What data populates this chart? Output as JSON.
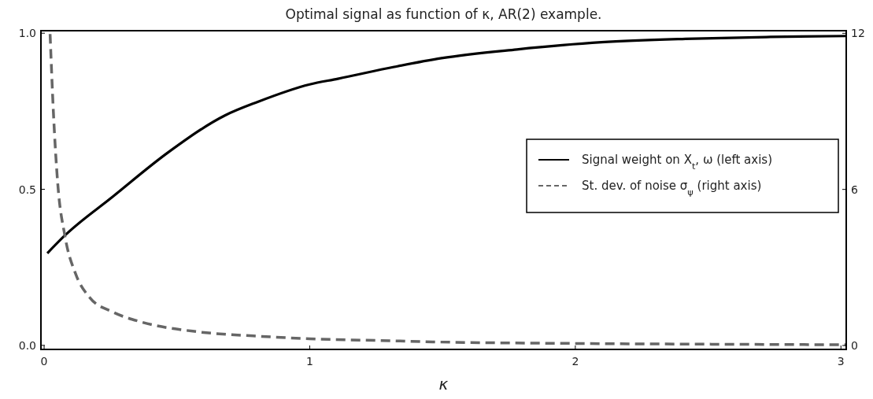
{
  "chart_data": {
    "type": "line",
    "title": "Optimal signal as function of κ, AR(2) example.",
    "xlabel": "κ",
    "xlim": [
      -0.012,
      3.02
    ],
    "xticks": [
      0,
      1,
      2,
      3
    ],
    "ylim": [
      -0.013,
      1.008
    ],
    "yticks": [
      {
        "value": 0,
        "label": "0.0"
      },
      {
        "value": 0.5,
        "label": "0.5"
      },
      {
        "value": 1,
        "label": "1.0"
      }
    ],
    "y2lim": [
      -0.15,
      12.1
    ],
    "y2ticks": [
      0,
      6,
      12
    ],
    "grid": false,
    "legend": "right",
    "marker": "none",
    "series": [
      {
        "name": "Signal weight on X$_{t}$, ω (left axis)",
        "color": "#000000",
        "line_style": "solid",
        "x": [
          0.012,
          0.078,
          0.258,
          0.47,
          0.682,
          0.804,
          1.0,
          1.106,
          1.318,
          1.496,
          1.78,
          2.098,
          2.415,
          2.735,
          3.02
        ],
        "values": [
          0.295,
          0.352,
          0.476,
          0.62,
          0.737,
          0.78,
          0.836,
          0.854,
          0.892,
          0.92,
          0.948,
          0.971,
          0.982,
          0.988,
          0.991
        ]
      },
      {
        "name": "St. dev. of noise  σ$_{ψ}$ (right axis)",
        "color": "#666666",
        "line_style": "dashed",
        "axis": "y2",
        "x": [
          0.0225,
          0.035,
          0.051,
          0.078,
          0.12,
          0.173,
          0.258,
          0.364,
          0.576,
          0.787,
          1.0,
          1.318,
          1.463,
          1.99,
          2.52,
          3.02
        ],
        "values": [
          11.97,
          8.95,
          6.26,
          4.23,
          2.72,
          1.83,
          1.29,
          0.91,
          0.53,
          0.37,
          0.26,
          0.18,
          0.14,
          0.08,
          0.05,
          0.03
        ]
      }
    ]
  }
}
